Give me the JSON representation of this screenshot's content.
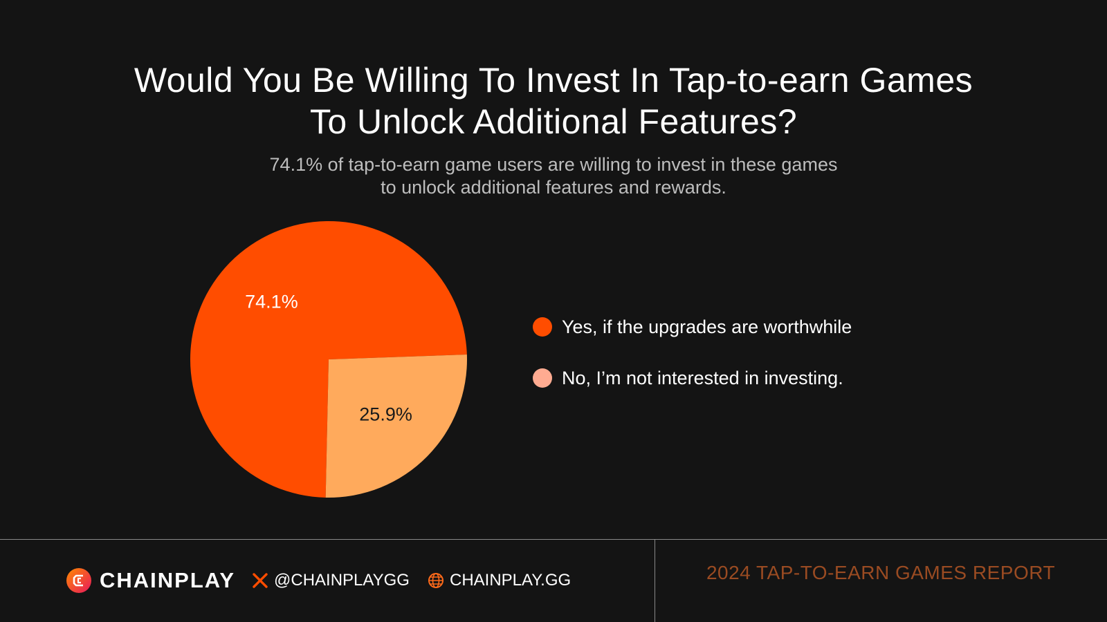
{
  "title": {
    "line1": "Would You Be Willing To Invest In Tap-to-earn Games",
    "line2": "To Unlock Additional Features?"
  },
  "subtitle": {
    "line1": "74.1% of tap-to-earn game users are willing to invest in these games",
    "line2": "to unlock additional features and rewards."
  },
  "chart_data": {
    "type": "pie",
    "categories": [
      "Yes, if the upgrades are worthwhile",
      "No, I’m not interested in investing."
    ],
    "values": [
      74.1,
      25.9
    ],
    "data_labels": [
      "74.1%",
      "25.9%"
    ],
    "colors": [
      "#ff4d00",
      "#ffaa5c"
    ],
    "legend_colors": [
      "#ff4d00",
      "#ffab91"
    ],
    "label_colors": [
      "#ffffff",
      "#1a1a1a"
    ],
    "start_angle_deg": -2,
    "direction": "counterclockwise",
    "title": "Would You Be Willing To Invest In Tap-to-earn Games To Unlock Additional Features?",
    "legend_position": "right"
  },
  "footer": {
    "brand": "CHAINPLAY",
    "social_handle": "@CHAINPLAYGG",
    "website": "CHAINPLAY.GG",
    "report": "2024 TAP-TO-EARN GAMES REPORT",
    "icons": {
      "logo": "chainplay-logo-icon",
      "x": "x-logo-icon",
      "globe": "globe-icon"
    }
  }
}
